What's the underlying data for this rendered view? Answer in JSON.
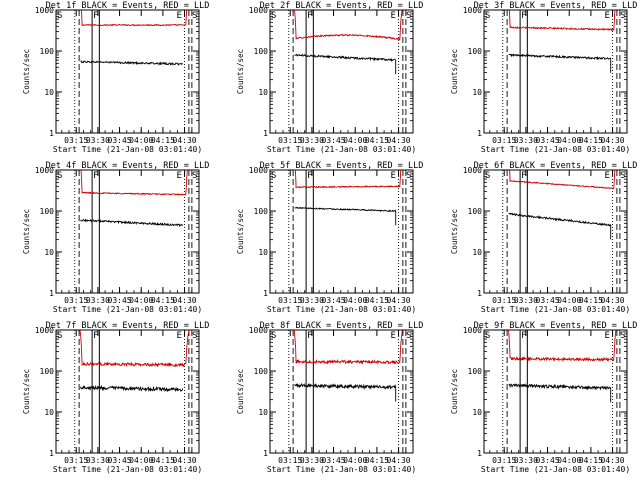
{
  "figure": {
    "ylabel": "Counts/sec",
    "xlabel": "Start Time (21-Jan-08 03:01:40)",
    "marker_labels": {
      "s": "S",
      "f": "F",
      "e": "E"
    },
    "colors": {
      "events": "#000000",
      "lld": "#cc0000",
      "axes": "#000000"
    }
  },
  "chart_data": [
    {
      "type": "line",
      "title": "Det 1f BLACK = Events, RED = LLD",
      "ylog": true,
      "ylim": [
        1,
        1000
      ],
      "xlim": [
        "03:01",
        "04:40"
      ],
      "xticks": [
        "03:15",
        "03:30",
        "03:45",
        "04:00",
        "04:15",
        "04:30"
      ],
      "yticks": [
        "1",
        "10",
        "100",
        "1000"
      ],
      "markers": {
        "dotted": [
          "03:14",
          "04:30"
        ],
        "dashed": [
          "03:17",
          "04:33"
        ],
        "solid": [
          "03:26",
          "03:31"
        ]
      },
      "series": [
        {
          "name": "LLD",
          "color": "#cc0000",
          "base": 430,
          "end": 430,
          "noise": 0.03,
          "start": "03:17",
          "stop": "04:33",
          "edge_rise": true
        },
        {
          "name": "Events",
          "color": "#000000",
          "base": 55,
          "end": 48,
          "noise": 0.05,
          "start": "03:18",
          "stop": "04:29",
          "drop_end": false
        }
      ]
    },
    {
      "type": "line",
      "title": "Det 2f BLACK = Events, RED = LLD",
      "ylog": true,
      "ylim": [
        1,
        1000
      ],
      "xlim": [
        "03:01",
        "04:40"
      ],
      "xticks": [
        "03:15",
        "03:30",
        "03:45",
        "04:00",
        "04:15",
        "04:30"
      ],
      "yticks": [
        "1",
        "10",
        "100",
        "1000"
      ],
      "markers": {
        "dotted": [
          "03:14",
          "04:30"
        ],
        "dashed": [
          "03:17",
          "04:33"
        ],
        "solid": [
          "03:26",
          "03:31"
        ]
      },
      "series": [
        {
          "name": "LLD",
          "color": "#cc0000",
          "base": 200,
          "end": 190,
          "noise": 0.04,
          "start": "03:17",
          "stop": "04:33",
          "edge_rise": true,
          "hump": 0.25
        },
        {
          "name": "Events",
          "color": "#000000",
          "base": 80,
          "end": 60,
          "noise": 0.05,
          "start": "03:18",
          "stop": "04:28",
          "drop_end": true
        }
      ]
    },
    {
      "type": "line",
      "title": "Det 3f BLACK = Events, RED = LLD",
      "ylog": true,
      "ylim": [
        1,
        1000
      ],
      "xlim": [
        "03:01",
        "04:40"
      ],
      "xticks": [
        "03:15",
        "03:30",
        "03:45",
        "04:00",
        "04:15",
        "04:30"
      ],
      "yticks": [
        "1",
        "10",
        "100",
        "1000"
      ],
      "markers": {
        "dotted": [
          "03:14",
          "04:30"
        ],
        "dashed": [
          "03:17",
          "04:33"
        ],
        "solid": [
          "03:26",
          "03:31"
        ]
      },
      "series": [
        {
          "name": "LLD",
          "color": "#cc0000",
          "base": 380,
          "end": 330,
          "noise": 0.04,
          "start": "03:17",
          "stop": "04:33",
          "edge_rise": true
        },
        {
          "name": "Events",
          "color": "#000000",
          "base": 80,
          "end": 65,
          "noise": 0.05,
          "start": "03:18",
          "stop": "04:29",
          "drop_end": true
        }
      ]
    },
    {
      "type": "line",
      "title": "Det 4f BLACK = Events, RED = LLD",
      "ylog": true,
      "ylim": [
        1,
        1000
      ],
      "xlim": [
        "03:01",
        "04:40"
      ],
      "xticks": [
        "03:15",
        "03:30",
        "03:45",
        "04:00",
        "04:15",
        "04:30"
      ],
      "yticks": [
        "1",
        "10",
        "100",
        "1000"
      ],
      "markers": {
        "dotted": [
          "03:14",
          "04:30"
        ],
        "dashed": [
          "03:17",
          "04:33"
        ],
        "solid": [
          "03:26",
          "03:31"
        ]
      },
      "series": [
        {
          "name": "LLD",
          "color": "#cc0000",
          "base": 280,
          "end": 250,
          "noise": 0.03,
          "start": "03:17",
          "stop": "04:33",
          "edge_rise": true
        },
        {
          "name": "Events",
          "color": "#000000",
          "base": 60,
          "end": 45,
          "noise": 0.05,
          "start": "03:18",
          "stop": "04:29",
          "drop_end": false
        }
      ]
    },
    {
      "type": "line",
      "title": "Det 5f BLACK = Events, RED = LLD",
      "ylog": true,
      "ylim": [
        1,
        1000
      ],
      "xlim": [
        "03:01",
        "04:40"
      ],
      "xticks": [
        "03:15",
        "03:30",
        "03:45",
        "04:00",
        "04:15",
        "04:30"
      ],
      "yticks": [
        "1",
        "10",
        "100",
        "1000"
      ],
      "markers": {
        "dotted": [
          "03:14",
          "04:30"
        ],
        "dashed": [
          "03:17",
          "04:33"
        ],
        "solid": [
          "03:26",
          "03:31"
        ]
      },
      "series": [
        {
          "name": "LLD",
          "color": "#cc0000",
          "base": 380,
          "end": 400,
          "noise": 0.03,
          "start": "03:17",
          "stop": "04:33",
          "edge_rise": true
        },
        {
          "name": "Events",
          "color": "#000000",
          "base": 120,
          "end": 100,
          "noise": 0.03,
          "start": "03:18",
          "stop": "04:28",
          "drop_end": true
        }
      ]
    },
    {
      "type": "line",
      "title": "Det 6f BLACK = Events, RED = LLD",
      "ylog": true,
      "ylim": [
        1,
        1000
      ],
      "xlim": [
        "03:01",
        "04:40"
      ],
      "xticks": [
        "03:15",
        "03:30",
        "03:45",
        "04:00",
        "04:15",
        "04:30"
      ],
      "yticks": [
        "1",
        "10",
        "100",
        "1000"
      ],
      "markers": {
        "dotted": [
          "03:14",
          "04:30"
        ],
        "dashed": [
          "03:17",
          "04:33"
        ],
        "solid": [
          "03:26",
          "03:31"
        ]
      },
      "series": [
        {
          "name": "LLD",
          "color": "#cc0000",
          "base": 550,
          "end": 350,
          "noise": 0.03,
          "start": "03:17",
          "stop": "04:33",
          "edge_rise": true
        },
        {
          "name": "Events",
          "color": "#000000",
          "base": 85,
          "end": 45,
          "noise": 0.05,
          "start": "03:18",
          "stop": "04:29",
          "drop_end": true
        }
      ]
    },
    {
      "type": "line",
      "title": "Det 7f BLACK = Events, RED = LLD",
      "ylog": true,
      "ylim": [
        1,
        1000
      ],
      "xlim": [
        "03:01",
        "04:40"
      ],
      "xticks": [
        "03:15",
        "03:30",
        "03:45",
        "04:00",
        "04:15",
        "04:30"
      ],
      "yticks": [
        "1",
        "10",
        "100",
        "1000"
      ],
      "markers": {
        "dotted": [
          "03:14",
          "04:30"
        ],
        "dashed": [
          "03:17",
          "04:33"
        ],
        "solid": [
          "03:26",
          "03:31"
        ]
      },
      "series": [
        {
          "name": "LLD",
          "color": "#cc0000",
          "base": 150,
          "end": 140,
          "noise": 0.08,
          "start": "03:17",
          "stop": "04:33",
          "edge_rise": true
        },
        {
          "name": "Events",
          "color": "#000000",
          "base": 40,
          "end": 35,
          "noise": 0.09,
          "start": "03:18",
          "stop": "04:29",
          "drop_end": false
        }
      ]
    },
    {
      "type": "line",
      "title": "Det 8f BLACK = Events, RED = LLD",
      "ylog": true,
      "ylim": [
        1,
        1000
      ],
      "xlim": [
        "03:01",
        "04:40"
      ],
      "xticks": [
        "03:15",
        "03:30",
        "03:45",
        "04:00",
        "04:15",
        "04:30"
      ],
      "yticks": [
        "1",
        "10",
        "100",
        "1000"
      ],
      "markers": {
        "dotted": [
          "03:14",
          "04:30"
        ],
        "dashed": [
          "03:17",
          "04:33"
        ],
        "solid": [
          "03:26",
          "03:31"
        ]
      },
      "series": [
        {
          "name": "LLD",
          "color": "#cc0000",
          "base": 170,
          "end": 165,
          "noise": 0.08,
          "start": "03:17",
          "stop": "04:33",
          "edge_rise": true
        },
        {
          "name": "Events",
          "color": "#000000",
          "base": 45,
          "end": 40,
          "noise": 0.09,
          "start": "03:18",
          "stop": "04:28",
          "drop_end": true
        }
      ]
    },
    {
      "type": "line",
      "title": "Det 9f BLACK = Events, RED = LLD",
      "ylog": true,
      "ylim": [
        1,
        1000
      ],
      "xlim": [
        "03:01",
        "04:40"
      ],
      "xticks": [
        "03:15",
        "03:30",
        "03:45",
        "04:00",
        "04:15",
        "04:30"
      ],
      "yticks": [
        "1",
        "10",
        "100",
        "1000"
      ],
      "markers": {
        "dotted": [
          "03:14",
          "04:30"
        ],
        "dashed": [
          "03:17",
          "04:33"
        ],
        "solid": [
          "03:26",
          "03:31"
        ]
      },
      "series": [
        {
          "name": "LLD",
          "color": "#cc0000",
          "base": 200,
          "end": 190,
          "noise": 0.07,
          "start": "03:17",
          "stop": "04:33",
          "edge_rise": true
        },
        {
          "name": "Events",
          "color": "#000000",
          "base": 45,
          "end": 38,
          "noise": 0.08,
          "start": "03:18",
          "stop": "04:29",
          "drop_end": true
        }
      ]
    }
  ]
}
